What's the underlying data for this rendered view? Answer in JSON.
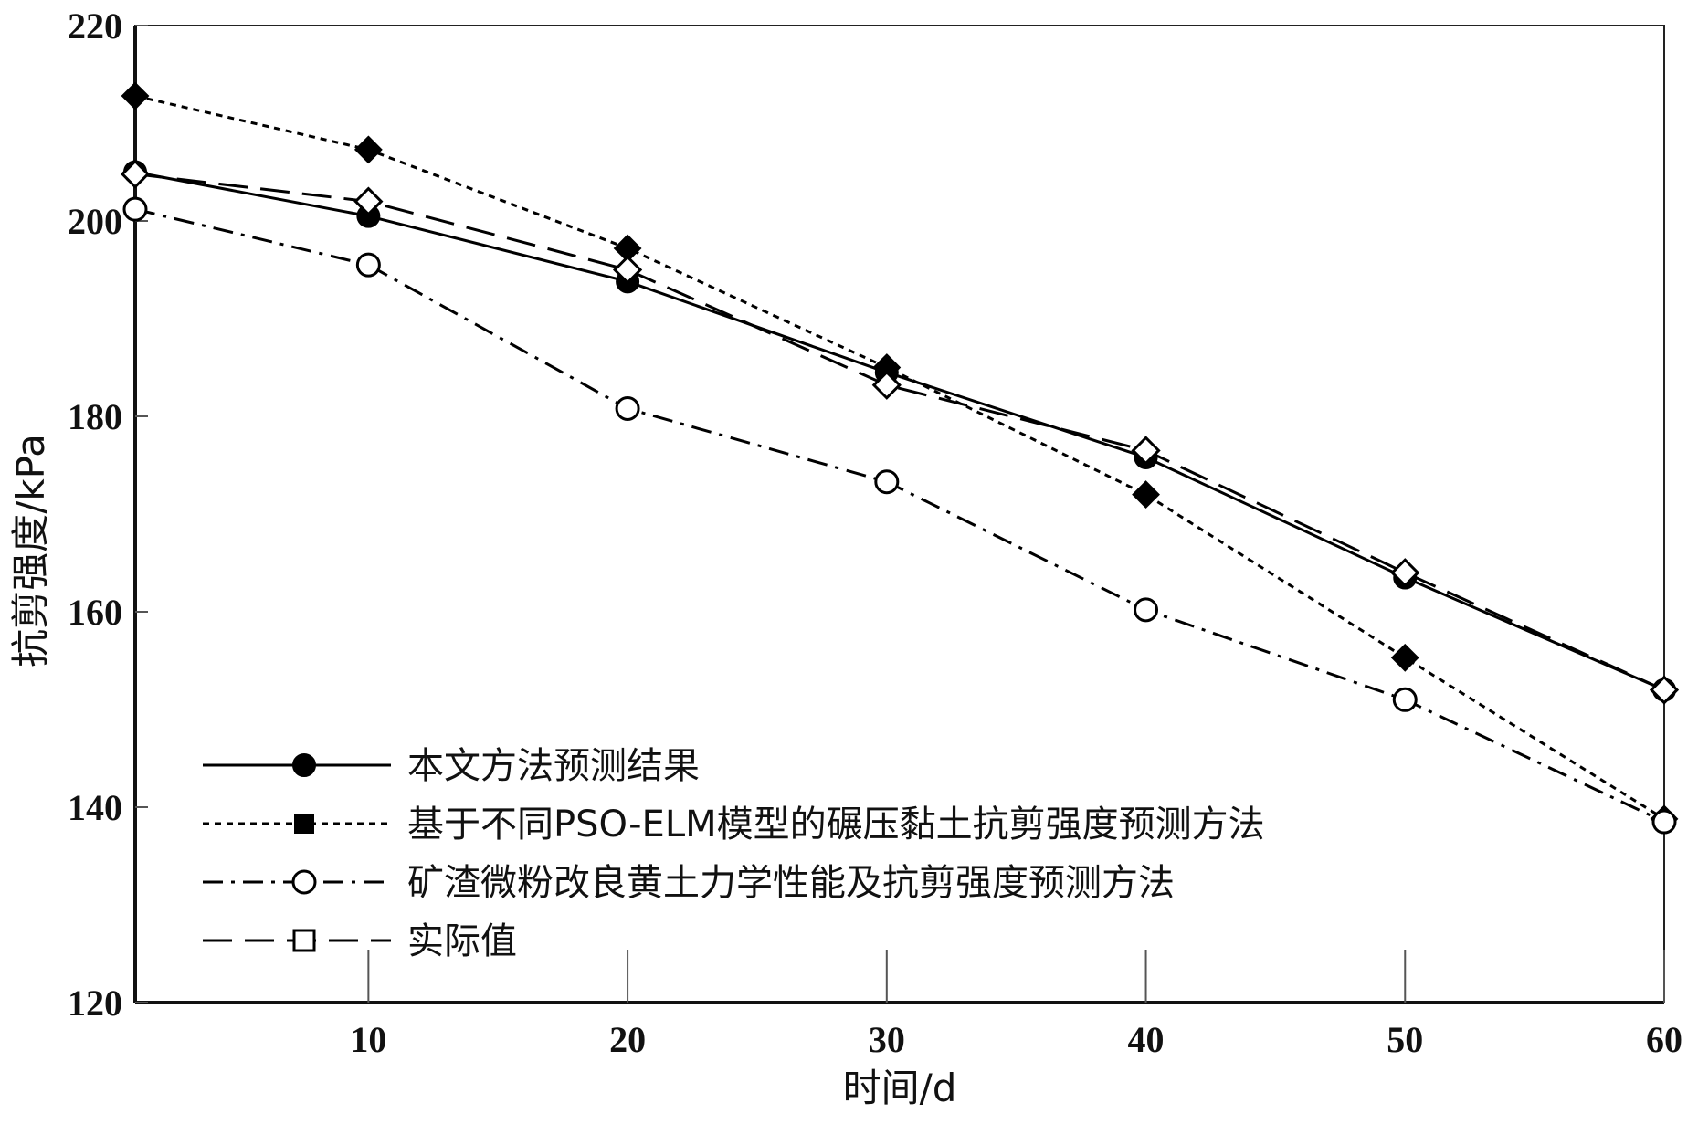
{
  "chart_data": {
    "type": "line",
    "xlabel": "时间/d",
    "ylabel": "抗剪强度/kPa",
    "xlim": [
      1,
      60
    ],
    "ylim": [
      120,
      220
    ],
    "xticks": [
      10,
      20,
      30,
      40,
      50,
      60
    ],
    "yticks": [
      120,
      140,
      160,
      180,
      200,
      220
    ],
    "grid": false,
    "legend_position": "bottom-left",
    "x": [
      1,
      10,
      20,
      30,
      40,
      50,
      60
    ],
    "series": [
      {
        "name": "本文方法预测结果",
        "values": [
          205.0,
          200.5,
          193.8,
          184.5,
          175.8,
          163.5,
          152.0
        ],
        "line_style": "solid",
        "marker": "filled-circle"
      },
      {
        "name": "基于不同PSO-ELM模型的碾压黏土抗剪强度预测方法",
        "values": [
          212.8,
          207.3,
          197.2,
          185.0,
          172.0,
          155.3,
          138.8
        ],
        "line_style": "dotted",
        "marker": "filled-diamond"
      },
      {
        "name": "矿渣微粉改良黄土力学性能及抗剪强度预测方法",
        "values": [
          201.2,
          195.5,
          180.8,
          173.3,
          160.2,
          151.0,
          138.5
        ],
        "line_style": "dash-dot",
        "marker": "open-circle"
      },
      {
        "name": "实际值",
        "values": [
          204.8,
          202.0,
          195.0,
          183.2,
          176.5,
          164.0,
          152.0
        ],
        "line_style": "dashed",
        "marker": "open-diamond"
      }
    ]
  }
}
